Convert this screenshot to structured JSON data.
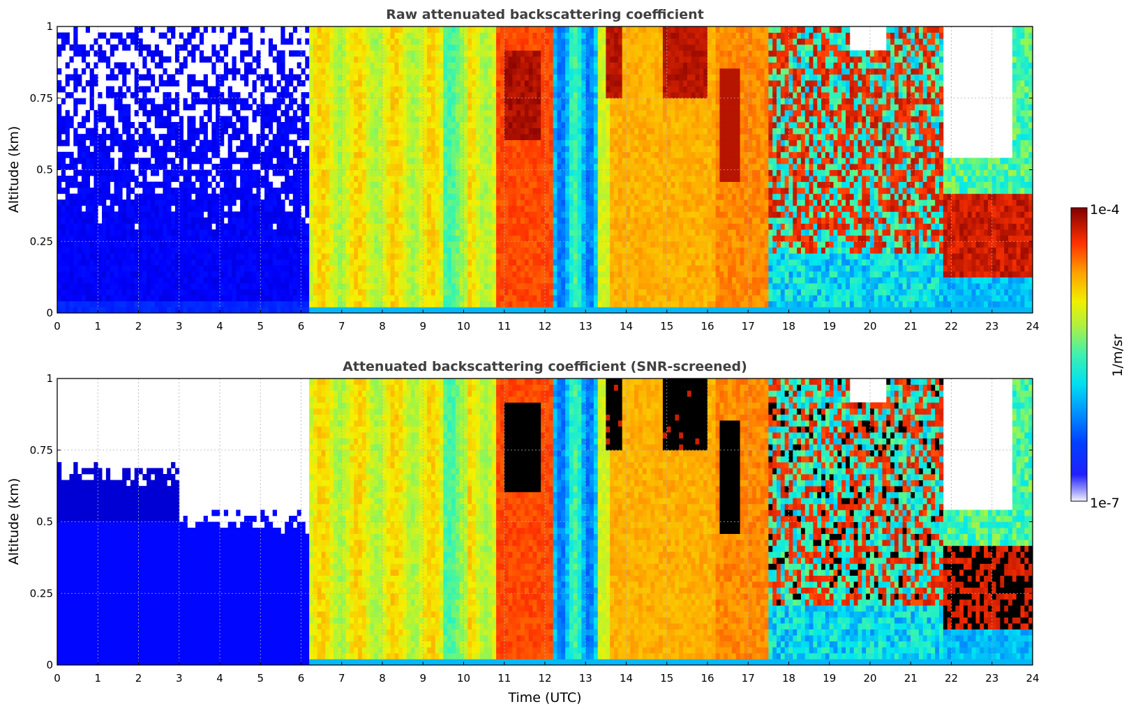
{
  "chart_data": [
    {
      "type": "heatmap",
      "title": "Raw attenuated backscattering coefficient",
      "ylabel": "Altitude (km)",
      "xlabel": "",
      "xlim": [
        0,
        24
      ],
      "ylim": [
        0,
        1
      ],
      "x_ticks": [
        "0",
        "1",
        "2",
        "3",
        "4",
        "5",
        "6",
        "7",
        "8",
        "9",
        "10",
        "11",
        "12",
        "13",
        "14",
        "15",
        "16",
        "17",
        "18",
        "19",
        "20",
        "21",
        "22",
        "23",
        "24"
      ],
      "y_ticks": [
        "0",
        "0.25",
        "0.5",
        "0.75",
        "1"
      ],
      "grid": true,
      "time_segments": [
        {
          "start": 0.0,
          "end": 6.25,
          "regime": "low signal, noisy above 0.3 km"
        },
        {
          "start": 6.25,
          "end": 10.8,
          "regime": "yellow-orange column"
        },
        {
          "start": 10.8,
          "end": 12.2,
          "regime": "red with dark-red cloud near 0.7-0.9 km"
        },
        {
          "start": 12.2,
          "end": 13.3,
          "regime": "cyan/blue clear"
        },
        {
          "start": 13.3,
          "end": 16.2,
          "regime": "orange with dark-red streaks near 0.8-1 km"
        },
        {
          "start": 16.2,
          "end": 17.5,
          "regime": "orange-red with cloud near 0.5-0.8 km"
        },
        {
          "start": 17.5,
          "end": 21.8,
          "regime": "mixed cyan/red clouds 0.2-1 km"
        },
        {
          "start": 21.8,
          "end": 24.0,
          "regime": "dark-red cloud layer 0.15-0.4 km"
        }
      ]
    },
    {
      "type": "heatmap",
      "title": "Attenuated backscattering coefficient (SNR-screened)",
      "ylabel": "Altitude (km)",
      "xlabel": "Time (UTC)",
      "xlim": [
        0,
        24
      ],
      "ylim": [
        0,
        1
      ],
      "x_ticks": [
        "0",
        "1",
        "2",
        "3",
        "4",
        "5",
        "6",
        "7",
        "8",
        "9",
        "10",
        "11",
        "12",
        "13",
        "14",
        "15",
        "16",
        "17",
        "18",
        "19",
        "20",
        "21",
        "22",
        "23",
        "24"
      ],
      "y_ticks": [
        "0",
        "0.25",
        "0.5",
        "0.75",
        "1"
      ],
      "grid": true,
      "screened_top_km": {
        "0-3h": 0.67,
        "3-6.25h": 0.5
      }
    }
  ],
  "colorbar": {
    "label": "1/m/sr",
    "max_label": "1e-4",
    "min_label": "1e-7",
    "scale": "log",
    "colormap": "jet"
  }
}
